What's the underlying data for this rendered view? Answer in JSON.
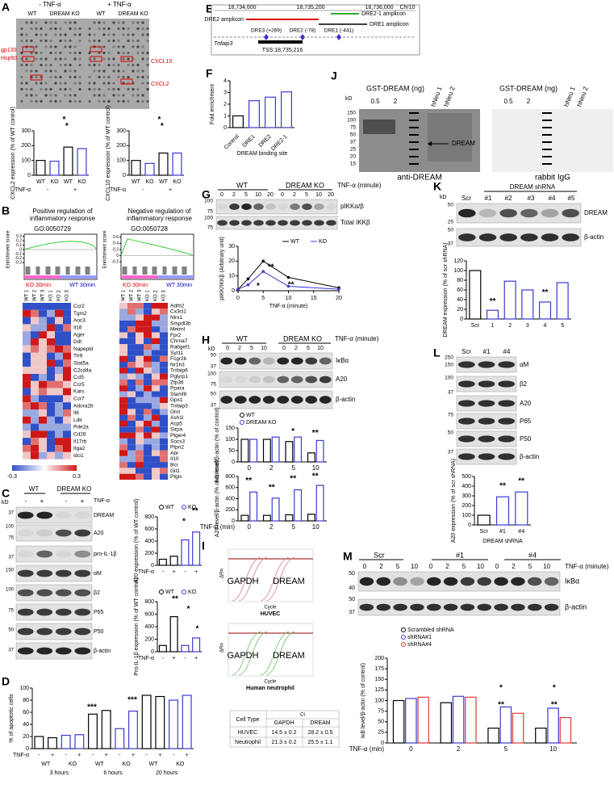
{
  "A": {
    "label": "A",
    "conditions": [
      "- TNF-α",
      "+ TNF-α"
    ],
    "lanes": [
      "WT",
      "DREAM KO",
      "WT",
      "DREAM KO"
    ],
    "spots_left": [
      "gp130",
      "Hsp60"
    ],
    "spots_right": [
      "CXCL10",
      "CXCL2"
    ],
    "charts": [
      {
        "type": "bar",
        "ylabel": "CXCL2 expression (% of WT control)",
        "categories": [
          "WT",
          "KO",
          "WT",
          "KO"
        ],
        "values": [
          100,
          95,
          190,
          180
        ],
        "colors": [
          "#000000",
          "#3a3ad0",
          "#000000",
          "#3a3ad0"
        ],
        "ylim": [
          0,
          300
        ],
        "yticks": [
          0,
          100,
          200,
          300
        ],
        "rows": [
          {
            "label": "TNF-α",
            "items": [
              "-",
              "+"
            ]
          }
        ],
        "stars": [
          "*",
          "*"
        ]
      },
      {
        "type": "bar",
        "ylabel": "CXCL10 expression (% of WT control)",
        "categories": [
          "WT",
          "KO",
          "WT",
          "KO"
        ],
        "values": [
          100,
          80,
          150,
          150
        ],
        "colors": [
          "#000000",
          "#3a3ad0",
          "#000000",
          "#3a3ad0"
        ],
        "ylim": [
          0,
          300
        ],
        "yticks": [
          0,
          100,
          200,
          300
        ],
        "rows": [
          {
            "label": "TNF-α",
            "items": [
              "-",
              "+"
            ]
          }
        ],
        "stars": [
          "*",
          "*"
        ]
      }
    ]
  },
  "B": {
    "label": "B",
    "columns": [
      "WT 1",
      "WT 2",
      "WT 3",
      "KO 1",
      "KO 2",
      "KO 3"
    ],
    "colorbar": [
      -0.3,
      0.3
    ],
    "gsea": [
      {
        "title": "Positive regulation of inflammatory response",
        "go": "GO:0050729",
        "ylabel": "Enrichment score",
        "yticks": [
          0.3,
          0.2,
          0.1,
          0,
          -0.1,
          -0.2,
          -0.3
        ],
        "ylim": [
          -0.35,
          0.35
        ],
        "left_label": "KO 30min",
        "right_label": "WT 30min",
        "genes": [
          "Ccr2",
          "Tgm2",
          "Aoc3",
          "Il16",
          "Ager",
          "Ddt",
          "Napepld",
          "Tlr9",
          "Stat5a",
          "C2cd4a",
          "Ccl5",
          "Ccr5",
          "Kars",
          "Ccr7",
          "Adora2b",
          "Il6",
          "Ldlr",
          "Pde2a",
          "Cd28",
          "Il17rb",
          "Itga2",
          "Ido1"
        ]
      },
      {
        "title": "Negative regulation of inflammatory response",
        "go": "GO:0050728",
        "ylabel": "Enrichment score",
        "yticks": [
          0.6,
          0.4,
          0.2,
          0,
          -0.2
        ],
        "ylim": [
          -0.3,
          0.7
        ],
        "left_label": "KO 30min",
        "right_label": "WT 30min",
        "genes": [
          "Adrb2",
          "Cx3cl1",
          "Nlrx1",
          "Smpdl3b",
          "Metrnl",
          "Fpr2",
          "Chrna7",
          "Rabgef1",
          "Syt11",
          "Fcgr2b",
          "Nr1h3",
          "Tnfaip6",
          "Pglyrp1",
          "Zfp36",
          "Ppara",
          "Slamf8",
          "Gpx1",
          "Tnfaip3",
          "Ghrl",
          "Ash1l",
          "Acp5",
          "Sirpa",
          "Ptger4",
          "Socs3",
          "Ptpn2",
          "Abr",
          "Il10",
          "Bcr",
          "Git1",
          "Ptgis"
        ]
      }
    ]
  },
  "C": {
    "label": "C",
    "kd": "kD",
    "groups": [
      "WT",
      "DREAM KO"
    ],
    "treatment": "TNF-α",
    "lanes": [
      "-",
      "+",
      "-",
      "+"
    ],
    "bands": [
      "DREAM",
      "A20",
      "pro-IL-1β",
      "αM",
      "β2",
      "P65",
      "P50",
      "β-actin"
    ],
    "markers": [
      37,
      100,
      75,
      37,
      150,
      100,
      75,
      50,
      37
    ],
    "charts": [
      {
        "type": "bar",
        "ylabel": "A20 expression (% of WT control)",
        "values": [
          100,
          150,
          420,
          550
        ],
        "colors": [
          "#000000",
          "#000000",
          "#3a3ad0",
          "#3a3ad0"
        ],
        "legend": [
          {
            "name": "WT",
            "color": "#000000"
          },
          {
            "name": "KO",
            "color": "#3a3ad0"
          }
        ],
        "ylim": [
          0,
          800
        ],
        "yticks": [
          0,
          200,
          400,
          600,
          800
        ],
        "rows": [
          {
            "label": "TNF-α",
            "items": [
              "-",
              "+",
              "-",
              "+"
            ]
          }
        ],
        "stars": [
          "*",
          "**"
        ]
      },
      {
        "type": "bar",
        "ylabel": "Pro-IL-1β expression (% of WT control)",
        "values": [
          100,
          560,
          100,
          220
        ],
        "colors": [
          "#000000",
          "#000000",
          "#3a3ad0",
          "#3a3ad0"
        ],
        "legend": [
          {
            "name": "WT",
            "color": "#000000"
          },
          {
            "name": "KO",
            "color": "#3a3ad0"
          }
        ],
        "ylim": [
          0,
          800
        ],
        "yticks": [
          0,
          200,
          400,
          600,
          800
        ],
        "rows": [
          {
            "label": "TNF-α",
            "items": [
              "-",
              "+",
              "-",
              "+"
            ]
          }
        ],
        "stars": [
          "**",
          "*",
          "*"
        ]
      }
    ]
  },
  "D": {
    "label": "D",
    "chart": {
      "type": "bar",
      "ylabel": "% of apoptotic cells",
      "values": [
        20,
        18,
        22,
        23,
        57,
        63,
        33,
        62,
        88,
        86,
        80,
        88
      ],
      "colors": [
        "#000000",
        "#000000",
        "#3a3ad0",
        "#3a3ad0",
        "#000000",
        "#000000",
        "#3a3ad0",
        "#3a3ad0",
        "#000000",
        "#000000",
        "#3a3ad0",
        "#3a3ad0"
      ],
      "ylim": [
        0,
        100
      ],
      "yticks": [
        0,
        20,
        40,
        60,
        80,
        100
      ],
      "rows": [
        {
          "label": "TNF-α",
          "items": [
            "-",
            "+",
            "-",
            "+",
            "-",
            "+",
            "-",
            "+",
            "-",
            "+",
            "-",
            "+"
          ]
        },
        {
          "items": [
            "WT",
            "KO",
            "WT",
            "KO",
            "WT",
            "KO"
          ]
        },
        {
          "items": [
            "3 hours",
            "6 hours",
            "20 hours"
          ]
        }
      ],
      "stars": [
        "***",
        "***"
      ]
    }
  },
  "E": {
    "label": "E",
    "coords": [
      "18,734,600",
      "18,735,200",
      "18,736,000"
    ],
    "chromosome": "Chr10",
    "amplicons": [
      "DRE2 amplicon",
      "DRE2-1 amplicon",
      "DRE1 amplicon"
    ],
    "sites": [
      "DRE3 (+269)",
      "DRE2 (-78)",
      "DRE1 (-441)"
    ],
    "gene": "Tnfaip3",
    "tss": "TSS:18,735,216"
  },
  "F": {
    "label": "F",
    "chart": {
      "type": "bar",
      "ylabel": "Fold enrichment",
      "categories": [
        "Control",
        "DRE1",
        "DRE2",
        "DRE2-1"
      ],
      "values": [
        1,
        2.3,
        2.6,
        3.05
      ],
      "colors": [
        "#000000",
        "#3a3ad0",
        "#3a3ad0",
        "#3a3ad0"
      ],
      "ylim": [
        0,
        4
      ],
      "yticks": [
        0,
        1,
        2,
        3,
        4
      ],
      "xlabel": "DREAM binding site"
    }
  },
  "G": {
    "label": "G",
    "groups": [
      "WT",
      "DREAM KO"
    ],
    "treatment": "TNF-α (minute)",
    "times": [
      "0",
      "2",
      "5",
      "10",
      "20"
    ],
    "markers": [
      100,
      75,
      100,
      75
    ],
    "bands": [
      "pIKKα/β",
      "Total IKKβ"
    ],
    "chart": {
      "type": "line",
      "ylabel": "pIKK/IKKβ (Arbitrary unit)",
      "xlabel": "TNF-α (minute)",
      "x": [
        0,
        2,
        5,
        10,
        20
      ],
      "series": [
        {
          "name": "WT",
          "color": "#000000",
          "values": [
            1,
            8,
            20,
            9,
            2
          ]
        },
        {
          "name": "KO",
          "color": "#3a3ad0",
          "values": [
            1,
            4,
            13,
            3,
            1
          ]
        }
      ],
      "xlim": [
        0,
        20
      ],
      "xticks": [
        0,
        5,
        10,
        15,
        20
      ],
      "ylim": [
        0,
        30
      ],
      "yticks": [
        0,
        10,
        20,
        30
      ],
      "stars": [
        "*",
        "**",
        "**"
      ]
    }
  },
  "H": {
    "label": "H",
    "kd": "kD",
    "groups": [
      "WT",
      "DREAM KO"
    ],
    "treatment": "TNF-α (minute)",
    "times": [
      "0",
      "2",
      "5",
      "10"
    ],
    "markers": [
      50,
      37,
      100,
      75,
      50,
      37
    ],
    "bands": [
      "IκBα",
      "A20",
      "β-actin"
    ],
    "charts": [
      {
        "type": "grouped_bar",
        "ylabel": "IκB level/β-actin (% of control)",
        "categories": [
          "0",
          "2",
          "5",
          "10"
        ],
        "series": [
          {
            "name": "WT",
            "color": "#000000",
            "values": [
              100,
              100,
              90,
              40
            ]
          },
          {
            "name": "DREAM KO",
            "color": "#3a3ad0",
            "values": [
              100,
              110,
              110,
              95
            ]
          }
        ],
        "ylim": [
          0,
          150
        ],
        "yticks": [
          0,
          50,
          100,
          150
        ],
        "stars": [
          "*",
          "**"
        ]
      },
      {
        "type": "grouped_bar",
        "ylabel": "A20 level/β-actin (% of control)",
        "xlabel": "TNF-α (min)",
        "categories": [
          "0",
          "2",
          "5",
          "10"
        ],
        "series": [
          {
            "name": "WT",
            "color": "#000000",
            "values": [
              100,
              100,
              110,
              120
            ]
          },
          {
            "name": "DREAM KO",
            "color": "#3a3ad0",
            "values": [
              520,
              410,
              560,
              640
            ]
          }
        ],
        "ylim": [
          0,
          800
        ],
        "yticks": [
          0,
          200,
          400,
          600,
          800
        ],
        "stars": [
          "**",
          "**",
          "**",
          "**"
        ]
      }
    ]
  },
  "I": {
    "label": "I",
    "plots": [
      {
        "ylabel": "ΔRn",
        "genes": [
          "GAPDH",
          "DREAM"
        ],
        "xlabel": "Cycle",
        "cell": "HUVEC"
      },
      {
        "ylabel": "ΔRn",
        "genes": [
          "GAPDH",
          "DREAM"
        ],
        "xlabel": "Cycle",
        "cell": "Human neutrophil"
      }
    ],
    "table": {
      "group_header": "Ct",
      "header": [
        "Cell Type",
        "GAPDH",
        "DREAM"
      ],
      "rows": [
        [
          "HUVEC",
          "14.5 ± 0.2",
          "28.2 ± 0.5"
        ],
        [
          "Neutrophil",
          "21.3 ± 0.2",
          "25.5 ± 1.1"
        ]
      ]
    }
  },
  "J": {
    "label": "J",
    "kd": "kD",
    "markers": [
      150,
      100,
      75,
      50,
      37,
      25,
      20,
      15
    ],
    "arrow": "DREAM",
    "blots": [
      {
        "title": "GST-DREAM (ng)",
        "amounts": [
          "0.5",
          "2"
        ],
        "samples": [
          "hNeu 1",
          "hNeu 2"
        ],
        "antibody": "anti-DREAM"
      },
      {
        "title": "GST-DREAM (ng)",
        "amounts": [
          "0.5",
          "2"
        ],
        "samples": [
          "hNeu 1",
          "hNeu 2"
        ],
        "antibody": "rabbit IgG"
      }
    ]
  },
  "K": {
    "label": "K",
    "kd": "kD",
    "shrna": "DREAM shRNA",
    "lanes": [
      "Scr",
      "#1",
      "#2",
      "#3",
      "#4",
      "#5"
    ],
    "markers": [
      50,
      25,
      50,
      37
    ],
    "bands": [
      "DREAM",
      "β-actin"
    ],
    "chart": {
      "type": "bar",
      "ylabel": "DREAM expression (% of scr shRNA)",
      "categories": [
        "Scr",
        "1",
        "2",
        "3",
        "4",
        "5"
      ],
      "values": [
        100,
        18,
        78,
        60,
        35,
        75
      ],
      "colors": [
        "#000000",
        "#3a3ad0",
        "#3a3ad0",
        "#3a3ad0",
        "#3a3ad0",
        "#3a3ad0"
      ],
      "ylim": [
        0,
        120
      ],
      "yticks": [
        0,
        20,
        40,
        60,
        80,
        100,
        120
      ],
      "stars": [
        "**",
        "**"
      ]
    }
  },
  "L": {
    "label": "L",
    "lanes": [
      "Scr",
      "#1",
      "#4"
    ],
    "markers": [
      250,
      150,
      100,
      37,
      75,
      50,
      37
    ],
    "bands": [
      "αM",
      "β2",
      "A20",
      "P65",
      "P50",
      "β-actin"
    ],
    "chart": {
      "type": "bar",
      "ylabel": "A20 expression (% of scr shRNA)",
      "categories": [
        "Scr",
        "#1",
        "#4"
      ],
      "values": [
        100,
        290,
        340
      ],
      "colors": [
        "#000000",
        "#3a3ad0",
        "#3a3ad0"
      ],
      "ylim": [
        0,
        500
      ],
      "yticks": [
        0,
        100,
        200,
        300,
        400,
        500
      ],
      "xlabel": "DREAM shRNA",
      "stars": [
        "**",
        "**"
      ]
    }
  },
  "M": {
    "label": "M",
    "lanes": [
      "Scr",
      "#1",
      "#4"
    ],
    "times": [
      "0",
      "2",
      "5",
      "10"
    ],
    "treatment": "TNF-α (minute)",
    "markers": [
      50,
      40,
      50,
      37
    ],
    "bands": [
      "IκBα",
      "β-actin"
    ],
    "chart": {
      "type": "grouped_bar",
      "ylabel": "IκB level/β-actin (% of control)",
      "xlabel": "TNF-α (min)",
      "categories": [
        "0",
        "2",
        "5",
        "10"
      ],
      "series": [
        {
          "name": "Scrambled shRNA",
          "color": "#000000",
          "values": [
            100,
            95,
            35,
            35
          ]
        },
        {
          "name": "shRNA#1",
          "color": "#3a3ad0",
          "values": [
            105,
            110,
            85,
            82
          ]
        },
        {
          "name": "shRNA#4",
          "color": "#e03a3a",
          "values": [
            108,
            108,
            70,
            60
          ]
        }
      ],
      "ylim": [
        0,
        200
      ],
      "yticks": [
        0,
        25,
        50,
        75,
        100,
        125,
        150,
        175,
        200
      ],
      "stars": [
        "*",
        "**",
        "*",
        "**"
      ]
    }
  }
}
